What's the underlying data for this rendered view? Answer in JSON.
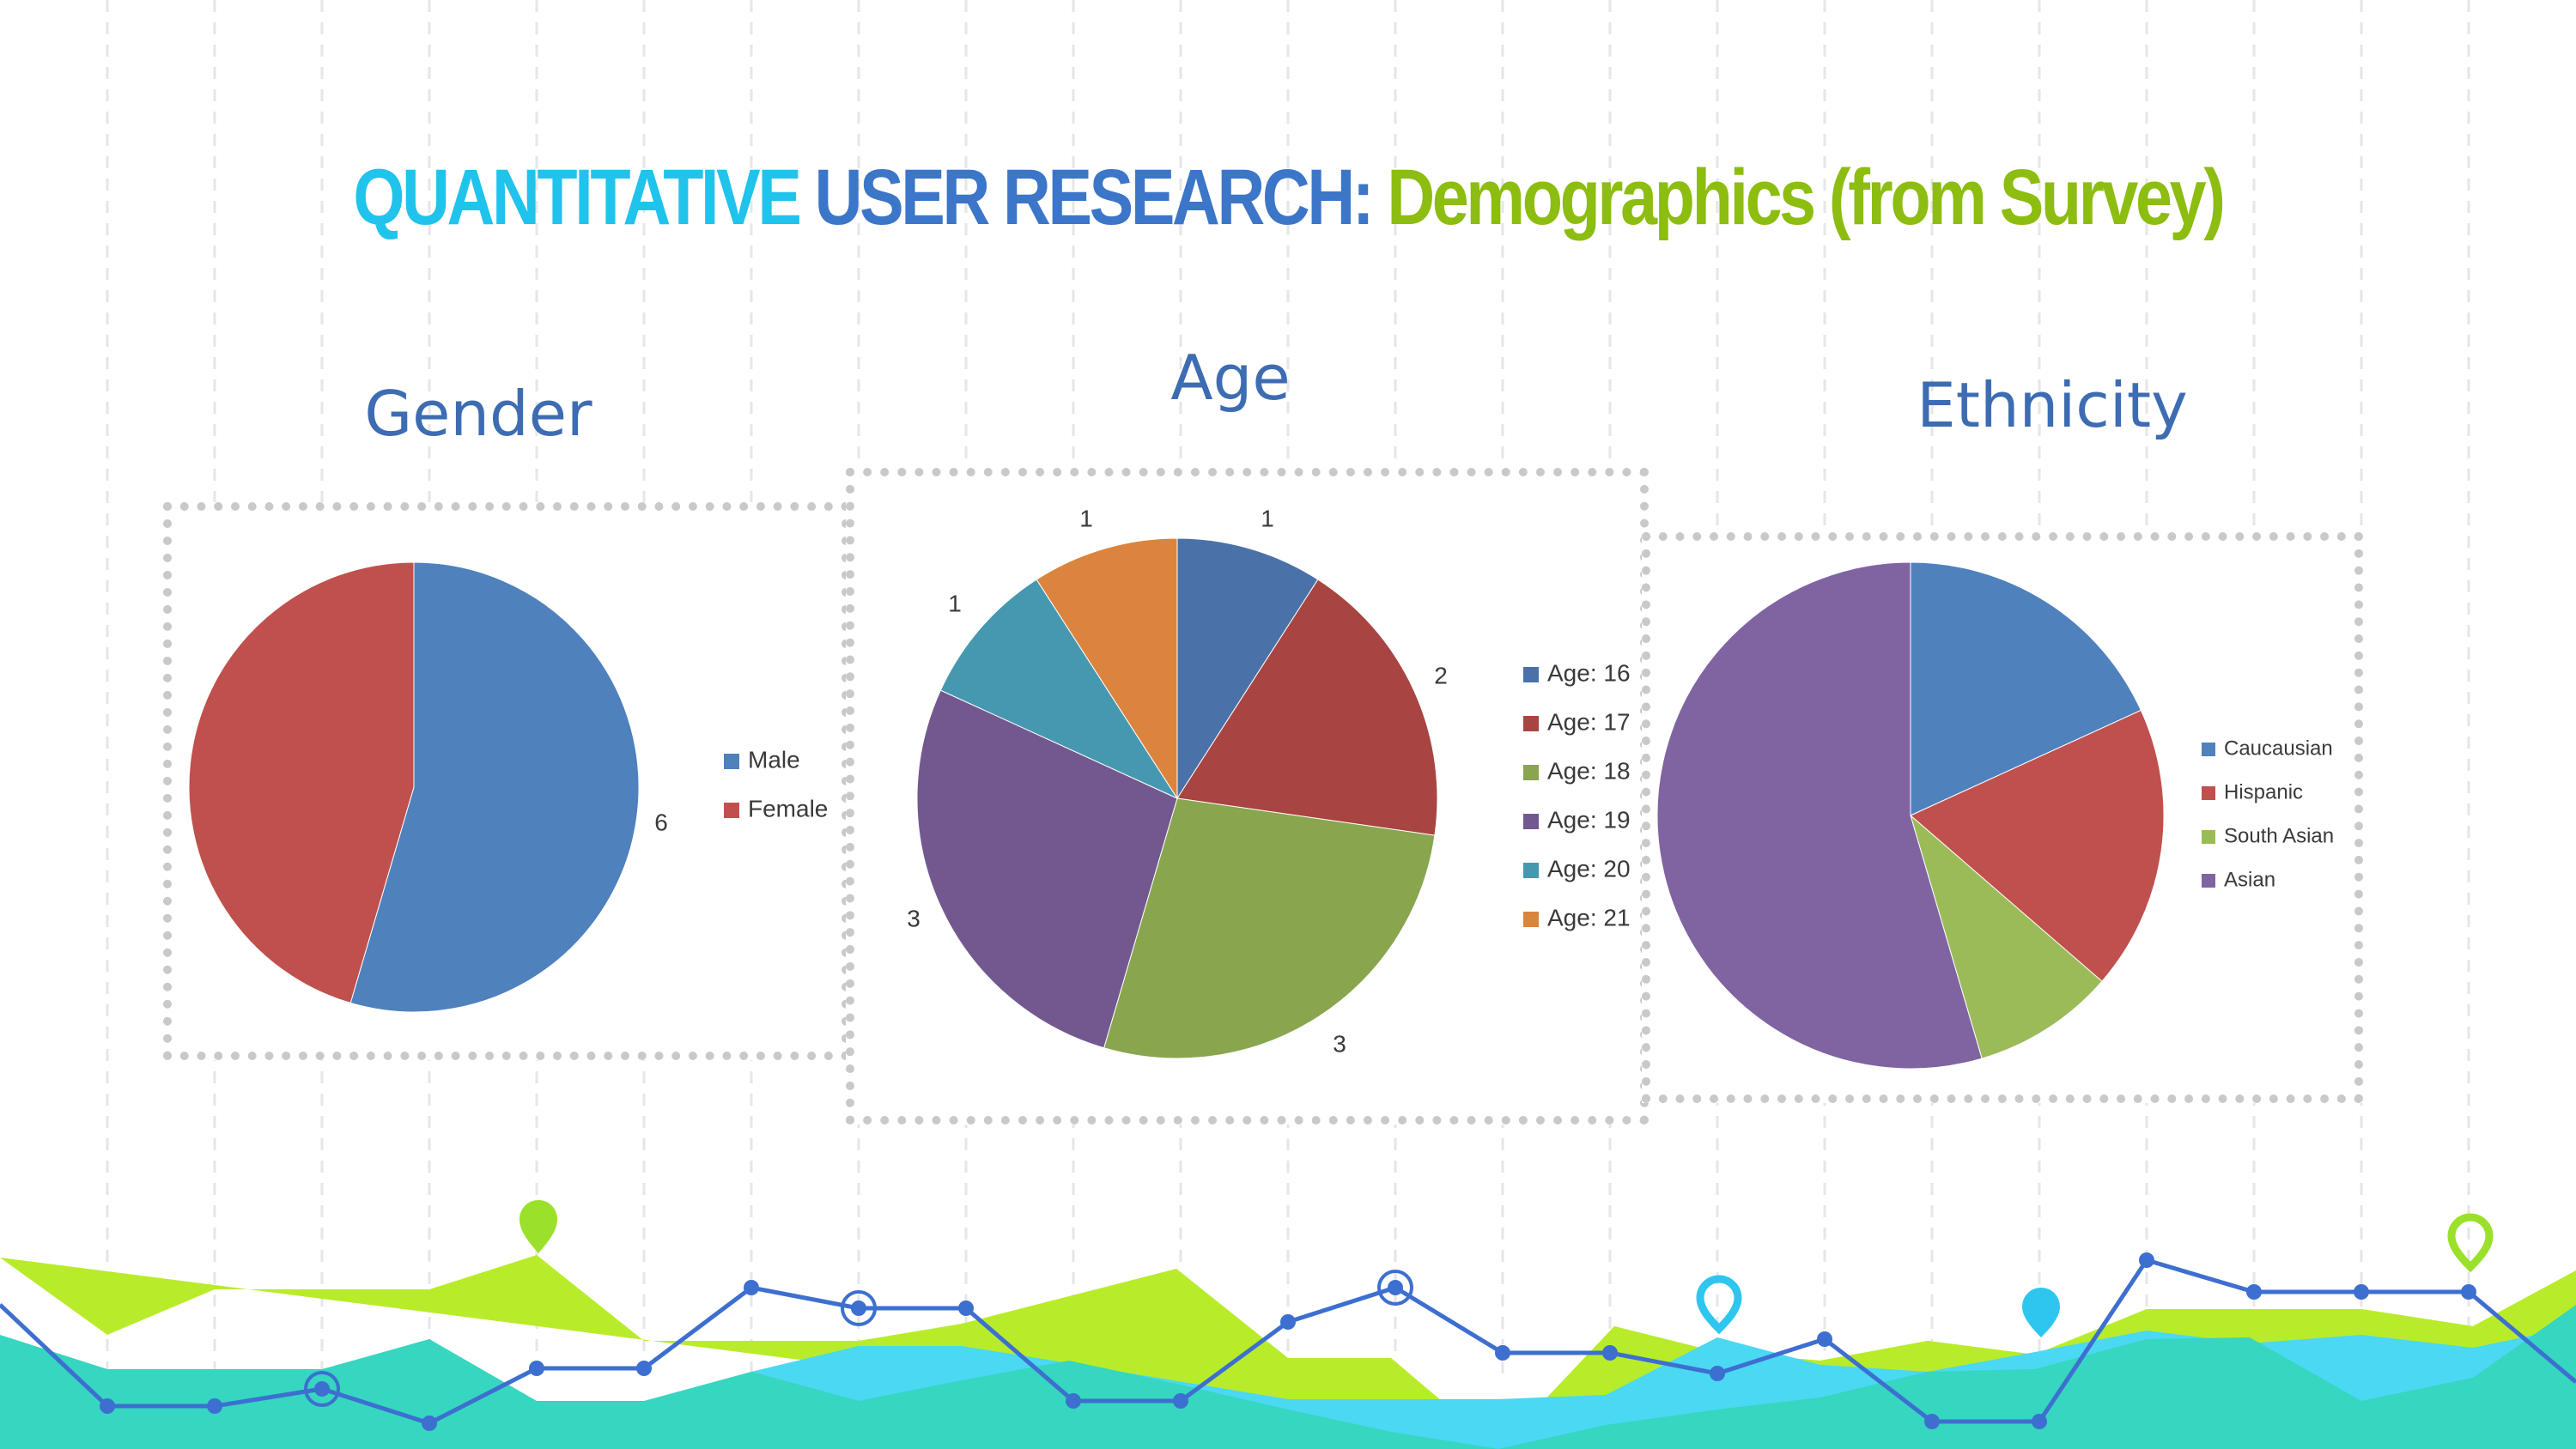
{
  "title": {
    "part1": "QUANTITATIVE",
    "part2": "USER RESEARCH:",
    "part3": "Demographics (from Survey)"
  },
  "colors": {
    "title_cyan": "#1fc3ec",
    "title_blue": "#3b76c8",
    "title_green": "#8cbd10",
    "wave_lime": "#b8ec2a",
    "wave_cyan": "#4ad8f2",
    "wave_teal": "#36d6c0",
    "line_blue": "#3d6fd0"
  },
  "chart_data": [
    {
      "type": "pie",
      "title": "Gender",
      "categories": [
        "Male",
        "Female"
      ],
      "values": [
        6,
        5
      ],
      "colors": [
        "#4f81bd",
        "#c0504d"
      ],
      "data_labels": [
        "6",
        ""
      ],
      "legend": "right"
    },
    {
      "type": "pie",
      "title": "Age",
      "categories": [
        "Age: 16",
        "Age: 17",
        "Age: 18",
        "Age: 19",
        "Age: 20",
        "Age: 21"
      ],
      "values": [
        1,
        2,
        3,
        3,
        1,
        1
      ],
      "colors": [
        "#4a72a8",
        "#a84441",
        "#89a54e",
        "#735890",
        "#4698b0",
        "#db843d"
      ],
      "data_labels": [
        "1",
        "2",
        "3",
        "3",
        "1",
        "1"
      ],
      "legend": "right"
    },
    {
      "type": "pie",
      "title": "Ethnicity",
      "categories": [
        "Caucausian",
        "Hispanic",
        "South Asian",
        "Asian"
      ],
      "values": [
        2,
        2,
        1,
        6
      ],
      "colors": [
        "#4f81bd",
        "#c0504d",
        "#9bbb59",
        "#8064a2"
      ],
      "legend": "right"
    }
  ]
}
